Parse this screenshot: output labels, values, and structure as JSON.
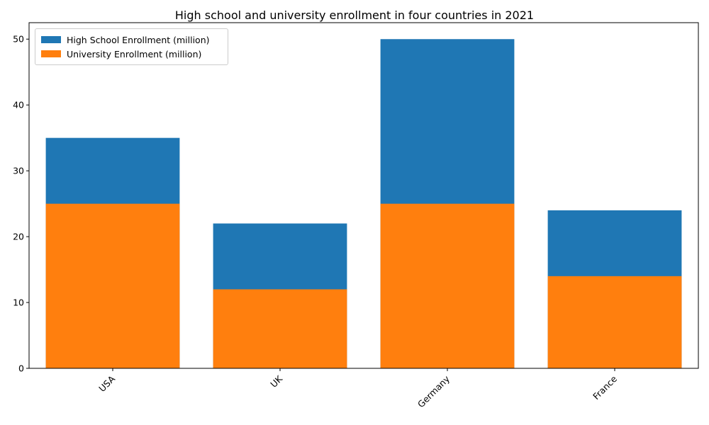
{
  "chart_data": {
    "type": "bar",
    "title": "High school and university enrollment in four countries in 2021",
    "xlabel": "",
    "ylabel": "",
    "categories": [
      "USA",
      "UK",
      "Germany",
      "France"
    ],
    "series": [
      {
        "name": "High School Enrollment (million)",
        "values": [
          35,
          22,
          50,
          24
        ],
        "color": "#1f77b4"
      },
      {
        "name": "University Enrollment (million)",
        "values": [
          25,
          12,
          25,
          14
        ],
        "color": "#ff7f0e"
      }
    ],
    "overlap": true,
    "ylim": [
      0,
      52.5
    ],
    "yticks": [
      0,
      10,
      20,
      30,
      40,
      50
    ],
    "legend_position": "upper-left",
    "x_tick_rotation": 45,
    "grid": false
  }
}
